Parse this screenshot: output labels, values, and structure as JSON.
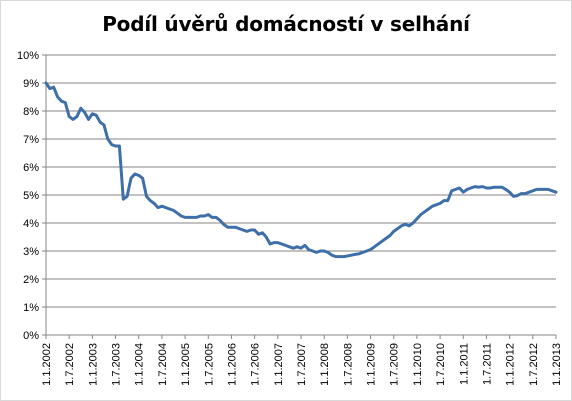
{
  "chart_data": {
    "type": "line",
    "title": "Podíl úvěrů domácností v selhání",
    "xlabel": "",
    "ylabel": "",
    "ylim": [
      0,
      10
    ],
    "grid": true,
    "y_ticks": [
      "0%",
      "1%",
      "2%",
      "3%",
      "4%",
      "5%",
      "6%",
      "7%",
      "8%",
      "9%",
      "10%"
    ],
    "x_ticks": [
      "1.1.2002",
      "1.7.2002",
      "1.1.2003",
      "1.7.2003",
      "1.1.2004",
      "1.7.2004",
      "1.1.2005",
      "1.7.2005",
      "1.1.2006",
      "1.7.2006",
      "1.1.2007",
      "1.7.2007",
      "1.1.2008",
      "1.7.2008",
      "1.1.2009",
      "1.7.2009",
      "1.1.2010",
      "1.7.2010",
      "1.1.2011",
      "1.7.2011",
      "1.1.2012",
      "1.7.2012",
      "1.1.2013"
    ],
    "line_color": "#3f6fa8",
    "series": [
      {
        "x": [
          "2002-01",
          "2002-02",
          "2002-03",
          "2002-04",
          "2002-05",
          "2002-06",
          "2002-07",
          "2002-08",
          "2002-09",
          "2002-10",
          "2002-11",
          "2002-12",
          "2003-01",
          "2003-02",
          "2003-03",
          "2003-04",
          "2003-05",
          "2003-06",
          "2003-07",
          "2003-08",
          "2003-09",
          "2003-10",
          "2003-11",
          "2003-12",
          "2004-01",
          "2004-02",
          "2004-03",
          "2004-04",
          "2004-05",
          "2004-06",
          "2004-07",
          "2004-08",
          "2004-09",
          "2004-10",
          "2004-11",
          "2004-12",
          "2005-01",
          "2005-02",
          "2005-03",
          "2005-04",
          "2005-05",
          "2005-06",
          "2005-07",
          "2005-08",
          "2005-09",
          "2005-10",
          "2005-11",
          "2005-12",
          "2006-01",
          "2006-02",
          "2006-03",
          "2006-04",
          "2006-05",
          "2006-06",
          "2006-07",
          "2006-08",
          "2006-09",
          "2006-10",
          "2006-11",
          "2006-12",
          "2007-01",
          "2007-02",
          "2007-03",
          "2007-04",
          "2007-05",
          "2007-06",
          "2007-07",
          "2007-08",
          "2007-09",
          "2007-10",
          "2007-11",
          "2007-12",
          "2008-01",
          "2008-02",
          "2008-03",
          "2008-04",
          "2008-05",
          "2008-06",
          "2008-07",
          "2008-08",
          "2008-09",
          "2008-10",
          "2008-11",
          "2008-12",
          "2009-01",
          "2009-02",
          "2009-03",
          "2009-04",
          "2009-05",
          "2009-06",
          "2009-07",
          "2009-08",
          "2009-09",
          "2009-10",
          "2009-11",
          "2009-12",
          "2010-01",
          "2010-02",
          "2010-03",
          "2010-04",
          "2010-05",
          "2010-06",
          "2010-07",
          "2010-08",
          "2010-09",
          "2010-10",
          "2010-11",
          "2010-12",
          "2011-01",
          "2011-02",
          "2011-03",
          "2011-04",
          "2011-05",
          "2011-06",
          "2011-07",
          "2011-08",
          "2011-09",
          "2011-10",
          "2011-11",
          "2011-12",
          "2012-01",
          "2012-02",
          "2012-03",
          "2012-04",
          "2012-05",
          "2012-06",
          "2012-07",
          "2012-08",
          "2012-09",
          "2012-10",
          "2012-11",
          "2012-12",
          "2013-01"
        ],
        "values": [
          9.0,
          8.8,
          8.85,
          8.5,
          8.35,
          8.3,
          7.8,
          7.7,
          7.8,
          8.1,
          7.95,
          7.7,
          7.9,
          7.85,
          7.6,
          7.5,
          7.0,
          6.8,
          6.75,
          6.75,
          4.85,
          4.95,
          5.6,
          5.75,
          5.7,
          5.6,
          4.95,
          4.8,
          4.7,
          4.55,
          4.6,
          4.55,
          4.5,
          4.45,
          4.35,
          4.25,
          4.2,
          4.2,
          4.2,
          4.2,
          4.25,
          4.25,
          4.3,
          4.2,
          4.2,
          4.1,
          3.95,
          3.85,
          3.85,
          3.85,
          3.8,
          3.75,
          3.7,
          3.75,
          3.75,
          3.6,
          3.65,
          3.5,
          3.25,
          3.3,
          3.3,
          3.25,
          3.2,
          3.15,
          3.1,
          3.15,
          3.1,
          3.2,
          3.05,
          3.0,
          2.95,
          3.0,
          3.0,
          2.95,
          2.85,
          2.8,
          2.8,
          2.8,
          2.82,
          2.85,
          2.88,
          2.9,
          2.95,
          3.0,
          3.05,
          3.15,
          3.25,
          3.35,
          3.45,
          3.55,
          3.7,
          3.8,
          3.9,
          3.95,
          3.9,
          4.0,
          4.15,
          4.3,
          4.4,
          4.5,
          4.6,
          4.65,
          4.7,
          4.8,
          4.8,
          5.15,
          5.2,
          5.25,
          5.1,
          5.2,
          5.25,
          5.3,
          5.28,
          5.3,
          5.25,
          5.25,
          5.28,
          5.28,
          5.28,
          5.2,
          5.1,
          4.95,
          4.98,
          5.05,
          5.05,
          5.1,
          5.15,
          5.2,
          5.2,
          5.2,
          5.2,
          5.15,
          5.1
        ]
      }
    ]
  }
}
